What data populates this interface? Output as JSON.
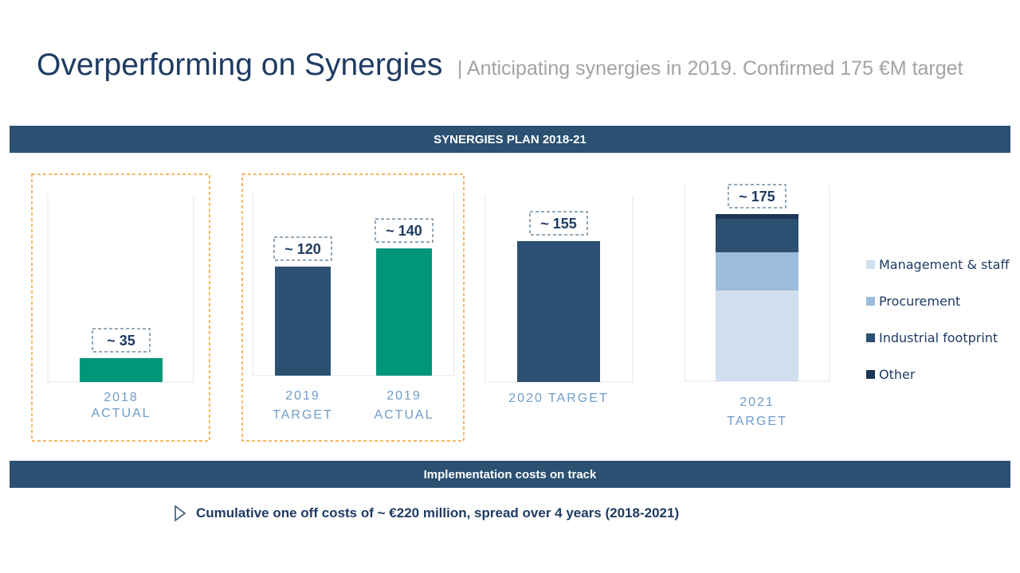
{
  "header": {
    "title": "Overperforming  on Synergies",
    "subtitle": "| Anticipating  synergies in 2019. Confirmed 175 €M target"
  },
  "banners": {
    "plan": "SYNERGIES PLAN 2018-21",
    "costs": "Implementation costs on track"
  },
  "bullet": {
    "icon": "triangle-right-icon",
    "text": "Cumulative one off costs of ~ €220 million,  spread over 4 years (2018-2021)"
  },
  "colors": {
    "navy": "#2b5071",
    "green": "#00967a",
    "highlight_border": "#f5a02e",
    "management_staff": "#d0dfee",
    "procurement": "#9dbcdc",
    "industrial_footprint": "#2b5071",
    "other": "#1d3557",
    "axis_label": "#6e9cc8"
  },
  "chart_data": {
    "type": "bar",
    "bars": [
      {
        "id": "2018-actual",
        "label_lines": [
          "2018",
          "ACTUAL"
        ],
        "value": 35,
        "value_label": "~ 35",
        "color": "#00967a",
        "highlighted": true
      },
      {
        "id": "2019-target",
        "label_lines": [
          "2019",
          "TARGET"
        ],
        "value": 120,
        "value_label": "~ 120",
        "color": "#2b5071",
        "highlighted": true
      },
      {
        "id": "2019-actual",
        "label_lines": [
          "2019",
          "ACTUAL"
        ],
        "value": 140,
        "value_label": "~ 140",
        "color": "#00967a",
        "highlighted": true
      },
      {
        "id": "2020-target",
        "label_lines": [
          "2020 TARGET"
        ],
        "value": 155,
        "value_label": "~ 155",
        "color": "#2b5071",
        "highlighted": false
      },
      {
        "id": "2021-target",
        "label_lines": [
          "2021",
          "TARGET"
        ],
        "value": 175,
        "value_label": "~ 175",
        "stacked": true,
        "segments": [
          {
            "name": "Management & staff",
            "value": 95,
            "color": "#d0dfee"
          },
          {
            "name": "Procurement",
            "value": 40,
            "color": "#9dbcdc"
          },
          {
            "name": "Industrial footprint",
            "value": 35,
            "color": "#2b5071"
          },
          {
            "name": "Other",
            "value": 5,
            "color": "#1d3557"
          }
        ],
        "highlighted": false
      }
    ],
    "legend": [
      "Management & staff",
      "Procurement",
      "Industrial footprint",
      "Other"
    ],
    "legend_position": "right",
    "ylim": [
      0,
      175
    ],
    "grid": false,
    "unit": "€M"
  }
}
